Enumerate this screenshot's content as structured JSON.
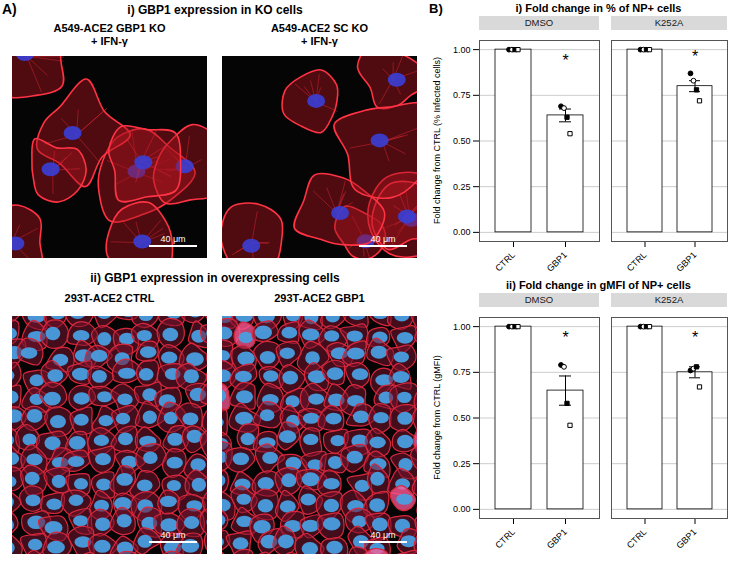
{
  "panel_a": {
    "letter": "A)",
    "sections": [
      {
        "title": "i) GBP1 expression in KO cells",
        "images": [
          {
            "label": [
              "A549-ACE2 GBP1 KO",
              "+ IFN-γ"
            ],
            "scale_bar": "40 μm"
          },
          {
            "label": [
              "A549-ACE2 SC KO",
              "+ IFN-γ"
            ],
            "scale_bar": "40 μm"
          }
        ]
      },
      {
        "title": "ii) GBP1 expression in overexpressing cells",
        "images": [
          {
            "label": [
              "293T-ACE2 CTRL"
            ],
            "scale_bar": "40 μm"
          },
          {
            "label": [
              "293T-ACE2 GBP1"
            ],
            "scale_bar": "40 μm"
          }
        ]
      }
    ]
  },
  "panel_b_letter": "B)",
  "chart_data": [
    {
      "type": "bar",
      "title": "i) Fold change in % of NP+ cells",
      "y_label": "Fold change from CTRL (% Infected cells)",
      "categories": [
        "CTRL",
        "GBP1"
      ],
      "ylim": [
        -0.05,
        1.05
      ],
      "yticks": [
        {
          "value": 0,
          "label": "0.00"
        },
        {
          "value": 0.25,
          "label": "0.25"
        },
        {
          "value": 0.5,
          "label": "0.50"
        },
        {
          "value": 0.75,
          "label": "0.75"
        },
        {
          "value": 1,
          "label": "1.00"
        }
      ],
      "grid": true,
      "panels": [
        {
          "title": "DMSO",
          "series": [
            {
              "type": "bar",
              "color": "#ffffff",
              "values": [
                1,
                0.64
              ],
              "errors": [
                0,
                0.035
              ]
            },
            {
              "type": "scatter",
              "marker": "circle",
              "color": "#000000",
              "values": [
                1,
                0.69
              ]
            },
            {
              "type": "scatter",
              "marker": "circle-open",
              "color": "#000000",
              "values": [
                1,
                0.68
              ]
            },
            {
              "type": "scatter",
              "marker": "square",
              "color": "#000000",
              "values": [
                1,
                0.63
              ]
            },
            {
              "type": "scatter",
              "marker": "square-open",
              "color": "#000000",
              "values": [
                1,
                0.54
              ]
            }
          ],
          "annotations": [
            {
              "text": "*",
              "x": "GBP1",
              "y": 0.94
            }
          ]
        },
        {
          "title": "K252A",
          "series": [
            {
              "type": "bar",
              "color": "#ffffff",
              "values": [
                1,
                0.8
              ],
              "errors": [
                0,
                0.03
              ]
            },
            {
              "type": "scatter",
              "marker": "circle",
              "color": "#000000",
              "values": [
                1,
                0.87
              ]
            },
            {
              "type": "scatter",
              "marker": "circle-open",
              "color": "#000000",
              "values": [
                1,
                0.83
              ]
            },
            {
              "type": "scatter",
              "marker": "square",
              "color": "#000000",
              "values": [
                1,
                0.78
              ]
            },
            {
              "type": "scatter",
              "marker": "square-open",
              "color": "#000000",
              "values": [
                1,
                0.72
              ]
            }
          ],
          "annotations": [
            {
              "text": "*",
              "x": "GBP1",
              "y": 0.96
            }
          ]
        }
      ]
    },
    {
      "type": "bar",
      "title": "ii) Fold change in gMFI of NP+ cells",
      "y_label": "Fold change from CTRL (gMFI)",
      "categories": [
        "CTRL",
        "GBP1"
      ],
      "ylim": [
        -0.05,
        1.05
      ],
      "yticks": [
        {
          "value": 0,
          "label": "0.00"
        },
        {
          "value": 0.25,
          "label": "0.25"
        },
        {
          "value": 0.5,
          "label": "0.50"
        },
        {
          "value": 0.75,
          "label": "0.75"
        },
        {
          "value": 1,
          "label": "1.00"
        }
      ],
      "grid": true,
      "panels": [
        {
          "title": "DMSO",
          "series": [
            {
              "type": "bar",
              "color": "#ffffff",
              "values": [
                1,
                0.65
              ],
              "errors": [
                0,
                0.08
              ]
            },
            {
              "type": "scatter",
              "marker": "circle",
              "color": "#000000",
              "values": [
                1,
                0.79
              ]
            },
            {
              "type": "scatter",
              "marker": "circle-open",
              "color": "#000000",
              "values": [
                1,
                0.78
              ]
            },
            {
              "type": "scatter",
              "marker": "square",
              "color": "#000000",
              "values": [
                1,
                0.58
              ]
            },
            {
              "type": "scatter",
              "marker": "square-open",
              "color": "#000000",
              "values": [
                1,
                0.46
              ]
            }
          ],
          "annotations": [
            {
              "text": "*",
              "x": "GBP1",
              "y": 0.94
            }
          ]
        },
        {
          "title": "K252A",
          "series": [
            {
              "type": "bar",
              "color": "#ffffff",
              "values": [
                1,
                0.75
              ],
              "errors": [
                0,
                0.03
              ]
            },
            {
              "type": "scatter",
              "marker": "circle",
              "color": "#000000",
              "values": [
                1,
                0.76
              ]
            },
            {
              "type": "scatter",
              "marker": "circle-open",
              "color": "#000000",
              "values": [
                1,
                0.77
              ]
            },
            {
              "type": "scatter",
              "marker": "square",
              "color": "#000000",
              "values": [
                1,
                0.78
              ]
            },
            {
              "type": "scatter",
              "marker": "square-open",
              "color": "#000000",
              "values": [
                1,
                0.67
              ]
            }
          ],
          "annotations": [
            {
              "text": "*",
              "x": "GBP1",
              "y": 0.94
            }
          ]
        }
      ]
    }
  ]
}
